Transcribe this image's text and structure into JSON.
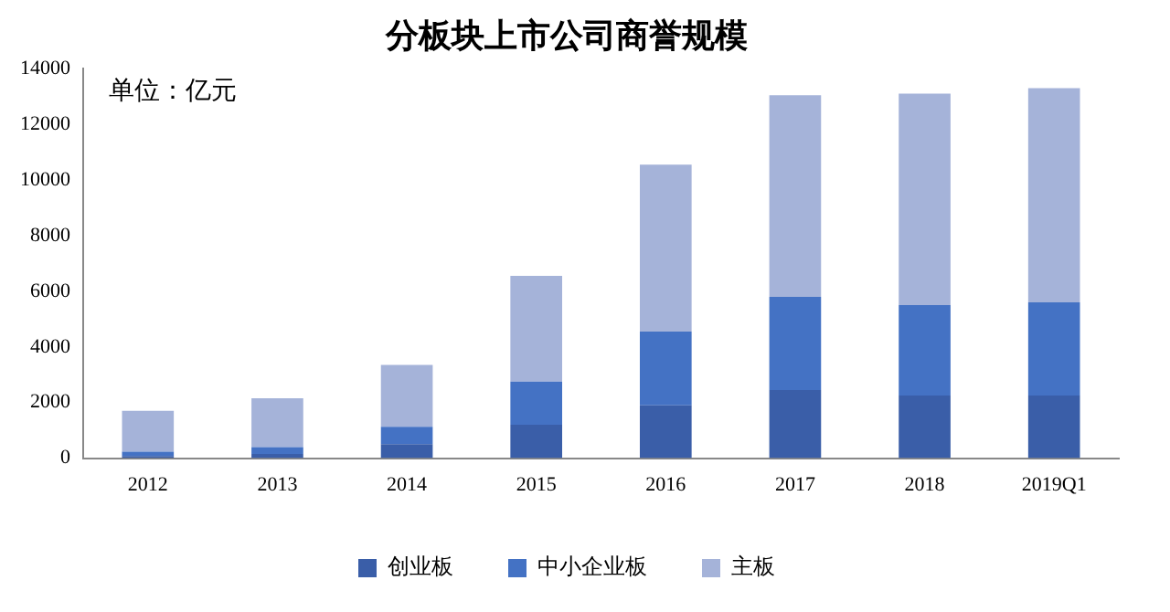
{
  "chart_data": {
    "type": "bar",
    "title": "分板块上市公司商誉规模",
    "annotations": [
      "单位：亿元"
    ],
    "categories": [
      "2012",
      "2013",
      "2014",
      "2015",
      "2016",
      "2017",
      "2018",
      "2019Q1"
    ],
    "series": [
      {
        "name": "创业板",
        "color": "#3a5ea8",
        "values": [
          80,
          150,
          500,
          1200,
          1900,
          2450,
          2250,
          2250
        ]
      },
      {
        "name": "中小企业板",
        "color": "#4472c4",
        "values": [
          150,
          250,
          630,
          1550,
          2650,
          3350,
          3250,
          3350
        ]
      },
      {
        "name": "主板",
        "color": "#a5b3d9",
        "values": [
          1470,
          1750,
          2220,
          3800,
          6000,
          7250,
          7600,
          7700
        ]
      }
    ],
    "stacked": true,
    "ylim": [
      0,
      14000
    ],
    "yticks": [
      0,
      2000,
      4000,
      6000,
      8000,
      10000,
      12000,
      14000
    ],
    "grid": false,
    "legend": "bottom"
  }
}
